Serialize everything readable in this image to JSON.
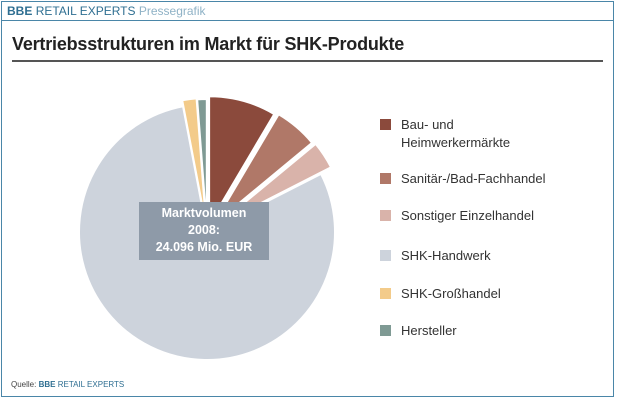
{
  "header": {
    "brand_bold": "BBE",
    "brand_regular": "RETAIL EXPERTS",
    "brand_sub": "Pressegrafik"
  },
  "title": "Vertriebsstrukturen im Markt für SHK-Produkte",
  "center_label": {
    "line1": "Marktvolumen",
    "line2": "2008:",
    "line3": "24.096 Mio. EUR"
  },
  "legend": [
    {
      "label": "Bau- und",
      "label2": "Heimwerkermärkte",
      "color": "#8b4a3c"
    },
    {
      "label": "Sanitär-/Bad-Fachhandel",
      "color": "#b07868"
    },
    {
      "label": "Sonstiger Einzelhandel",
      "color": "#d9b3aa"
    },
    {
      "label": "SHK-Handwerk",
      "color": "#cdd3dc"
    },
    {
      "label": "SHK-Großhandel",
      "color": "#f3cb8a"
    },
    {
      "label": "Hersteller",
      "color": "#7f9a94"
    }
  ],
  "source": {
    "prefix": "Quelle:",
    "brand_bold": "BBE",
    "brand_regular": "RETAIL EXPERTS"
  },
  "chart_data": {
    "type": "pie",
    "title": "Vertriebsstrukturen im Markt für SHK-Produkte",
    "subtitle": "Marktvolumen 2008: 24.096 Mio. EUR",
    "categories": [
      "Bau- und Heimwerkermärkte",
      "Sanitär-/Bad-Fachhandel",
      "Sonstiger Einzelhandel",
      "SHK-Handwerk",
      "SHK-Großhandel",
      "Hersteller"
    ],
    "values": [
      8.5,
      5.5,
      3.5,
      79.5,
      1.8,
      1.2
    ],
    "unit": "% (estimated from slice angles)",
    "colors": [
      "#8b4a3c",
      "#b07868",
      "#d9b3aa",
      "#cdd3dc",
      "#f3cb8a",
      "#7f9a94"
    ],
    "legend_position": "right",
    "center": [
      207,
      232
    ],
    "radius": 128
  }
}
